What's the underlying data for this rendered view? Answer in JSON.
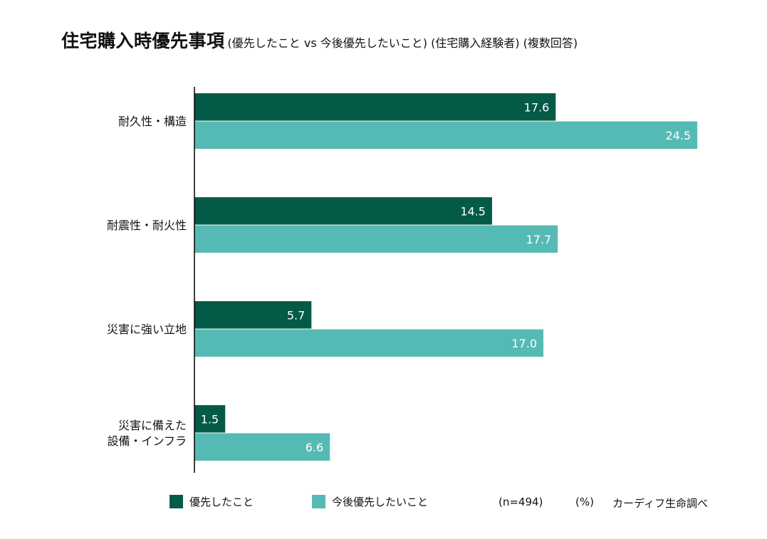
{
  "title": "住宅購入時優先事項",
  "subtitle": "(優先したこと vs 今後優先したいこと) (住宅購入経験者) (複数回答)",
  "colors": {
    "series1": "#035a47",
    "series2": "#56bab4",
    "axis": "#000000"
  },
  "chart_data": {
    "type": "bar",
    "orientation": "horizontal",
    "title": "住宅購入時優先事項",
    "subtitle": "(優先したこと vs 今後優先したいこと) (住宅購入経験者) (複数回答)",
    "categories": [
      [
        "耐久性・構造"
      ],
      [
        "耐震性・耐火性"
      ],
      [
        "災害に強い立地"
      ],
      [
        "災害に備えた",
        "設備・インフラ"
      ]
    ],
    "series": [
      {
        "name": "優先したこと",
        "values": [
          17.6,
          14.5,
          5.7,
          1.5
        ]
      },
      {
        "name": "今後優先したいこと",
        "values": [
          24.5,
          17.7,
          17.0,
          6.6
        ]
      }
    ],
    "xlim": [
      0,
      25.5
    ],
    "grid": false,
    "data_labels": true,
    "legend_position": "bottom-left"
  },
  "legend": [
    {
      "label": "優先したこと"
    },
    {
      "label": "今後優先したいこと"
    }
  ],
  "notes": {
    "sample": "(n=494)",
    "unit": "(%)",
    "source": "カーディフ生命調べ"
  }
}
